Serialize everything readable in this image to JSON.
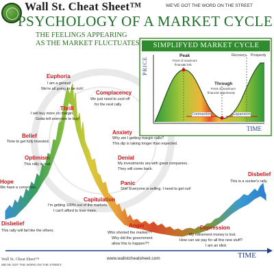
{
  "header": {
    "brand": "Wall St. Cheat Sheet™",
    "tagline": "WE'VE GOT THE WORD ON THE STREET",
    "title": "PSYCHOLOGY OF A MARKET CYCLE",
    "subtitle_line1": "THE FEELINGS APPEARING",
    "subtitle_line2": "AS THE MARKET FLUCTUATES."
  },
  "inset": {
    "title": "SIMPLIFYED MARKET CYCLE",
    "y_axis": "PRICE",
    "x_axis": "TIME",
    "peak_title": "Peak",
    "peak_text1": "Point of maximum",
    "peak_text2": "financial risk",
    "through_title": "Through",
    "through_text1": "Point of maximum",
    "through_text2": "financial opportunity",
    "recovery": "Recovery",
    "prosperity": "Prosperity",
    "contraction": "Contraction",
    "expansion": "Expansion"
  },
  "stages": {
    "euphoria": {
      "title": "Euphoria",
      "line1": "I am a genius!",
      "line2": "We're all going to be rich!"
    },
    "thrill": {
      "title": "Thrill",
      "line1": "I will buy more on margin.",
      "line2": "Gotta tell everyone to buy!"
    },
    "belief": {
      "title": "Belief",
      "line1": "Time to get fully invested."
    },
    "optimism": {
      "title": "Optimism",
      "line1": "This rally is real."
    },
    "hope": {
      "title": "Hope",
      "line1": "We have a correction."
    },
    "disbelief_left": {
      "title": "Disbelief",
      "line1": "This rally will fail like the others."
    },
    "complacency": {
      "title": "Complacency",
      "line1": "We just need to cool off",
      "line2": "for the next rally."
    },
    "anxiety": {
      "title": "Anxiety",
      "line1": "Why am I getting margin calls?",
      "line2": "This dip is taking longer than expected."
    },
    "denial": {
      "title": "Denial",
      "line1": "My investments are with great companies.",
      "line2": "They will come back."
    },
    "panic": {
      "title": "Panic",
      "line1": "Shit! Everyone is selling. I need to get out!"
    },
    "capitulation": {
      "title": "Capitulation",
      "line1": "I'm getting 100% out of the markets.",
      "line2": "I can't afford to lose more."
    },
    "anger": {
      "title": "Anger",
      "line1": "Who shorted the market??",
      "line2": "Why did the government",
      "line3": "allow this to happen??"
    },
    "depression": {
      "title": "Depression",
      "line1": "My retirement money is lost.",
      "line2": "How can we pay for all this new stuff?",
      "line3": "I am an idiot."
    },
    "disbelief_right": {
      "title": "Disbelief",
      "line1": "This is a sucker's rally."
    }
  },
  "footer": {
    "url": "www.wallstcheatsheet.com",
    "time_label": "TIME",
    "stamp": "Wall St. Cheat Sheet™",
    "stamp_tagline": "WE'VE GOT THE WORD ON THE STREET"
  },
  "colors": {
    "brand_green": "#1f6b2a",
    "accent_red": "#c4161c",
    "axis_blue": "#1c3c80"
  },
  "icons": {
    "logo": "globe-seal-icon"
  }
}
